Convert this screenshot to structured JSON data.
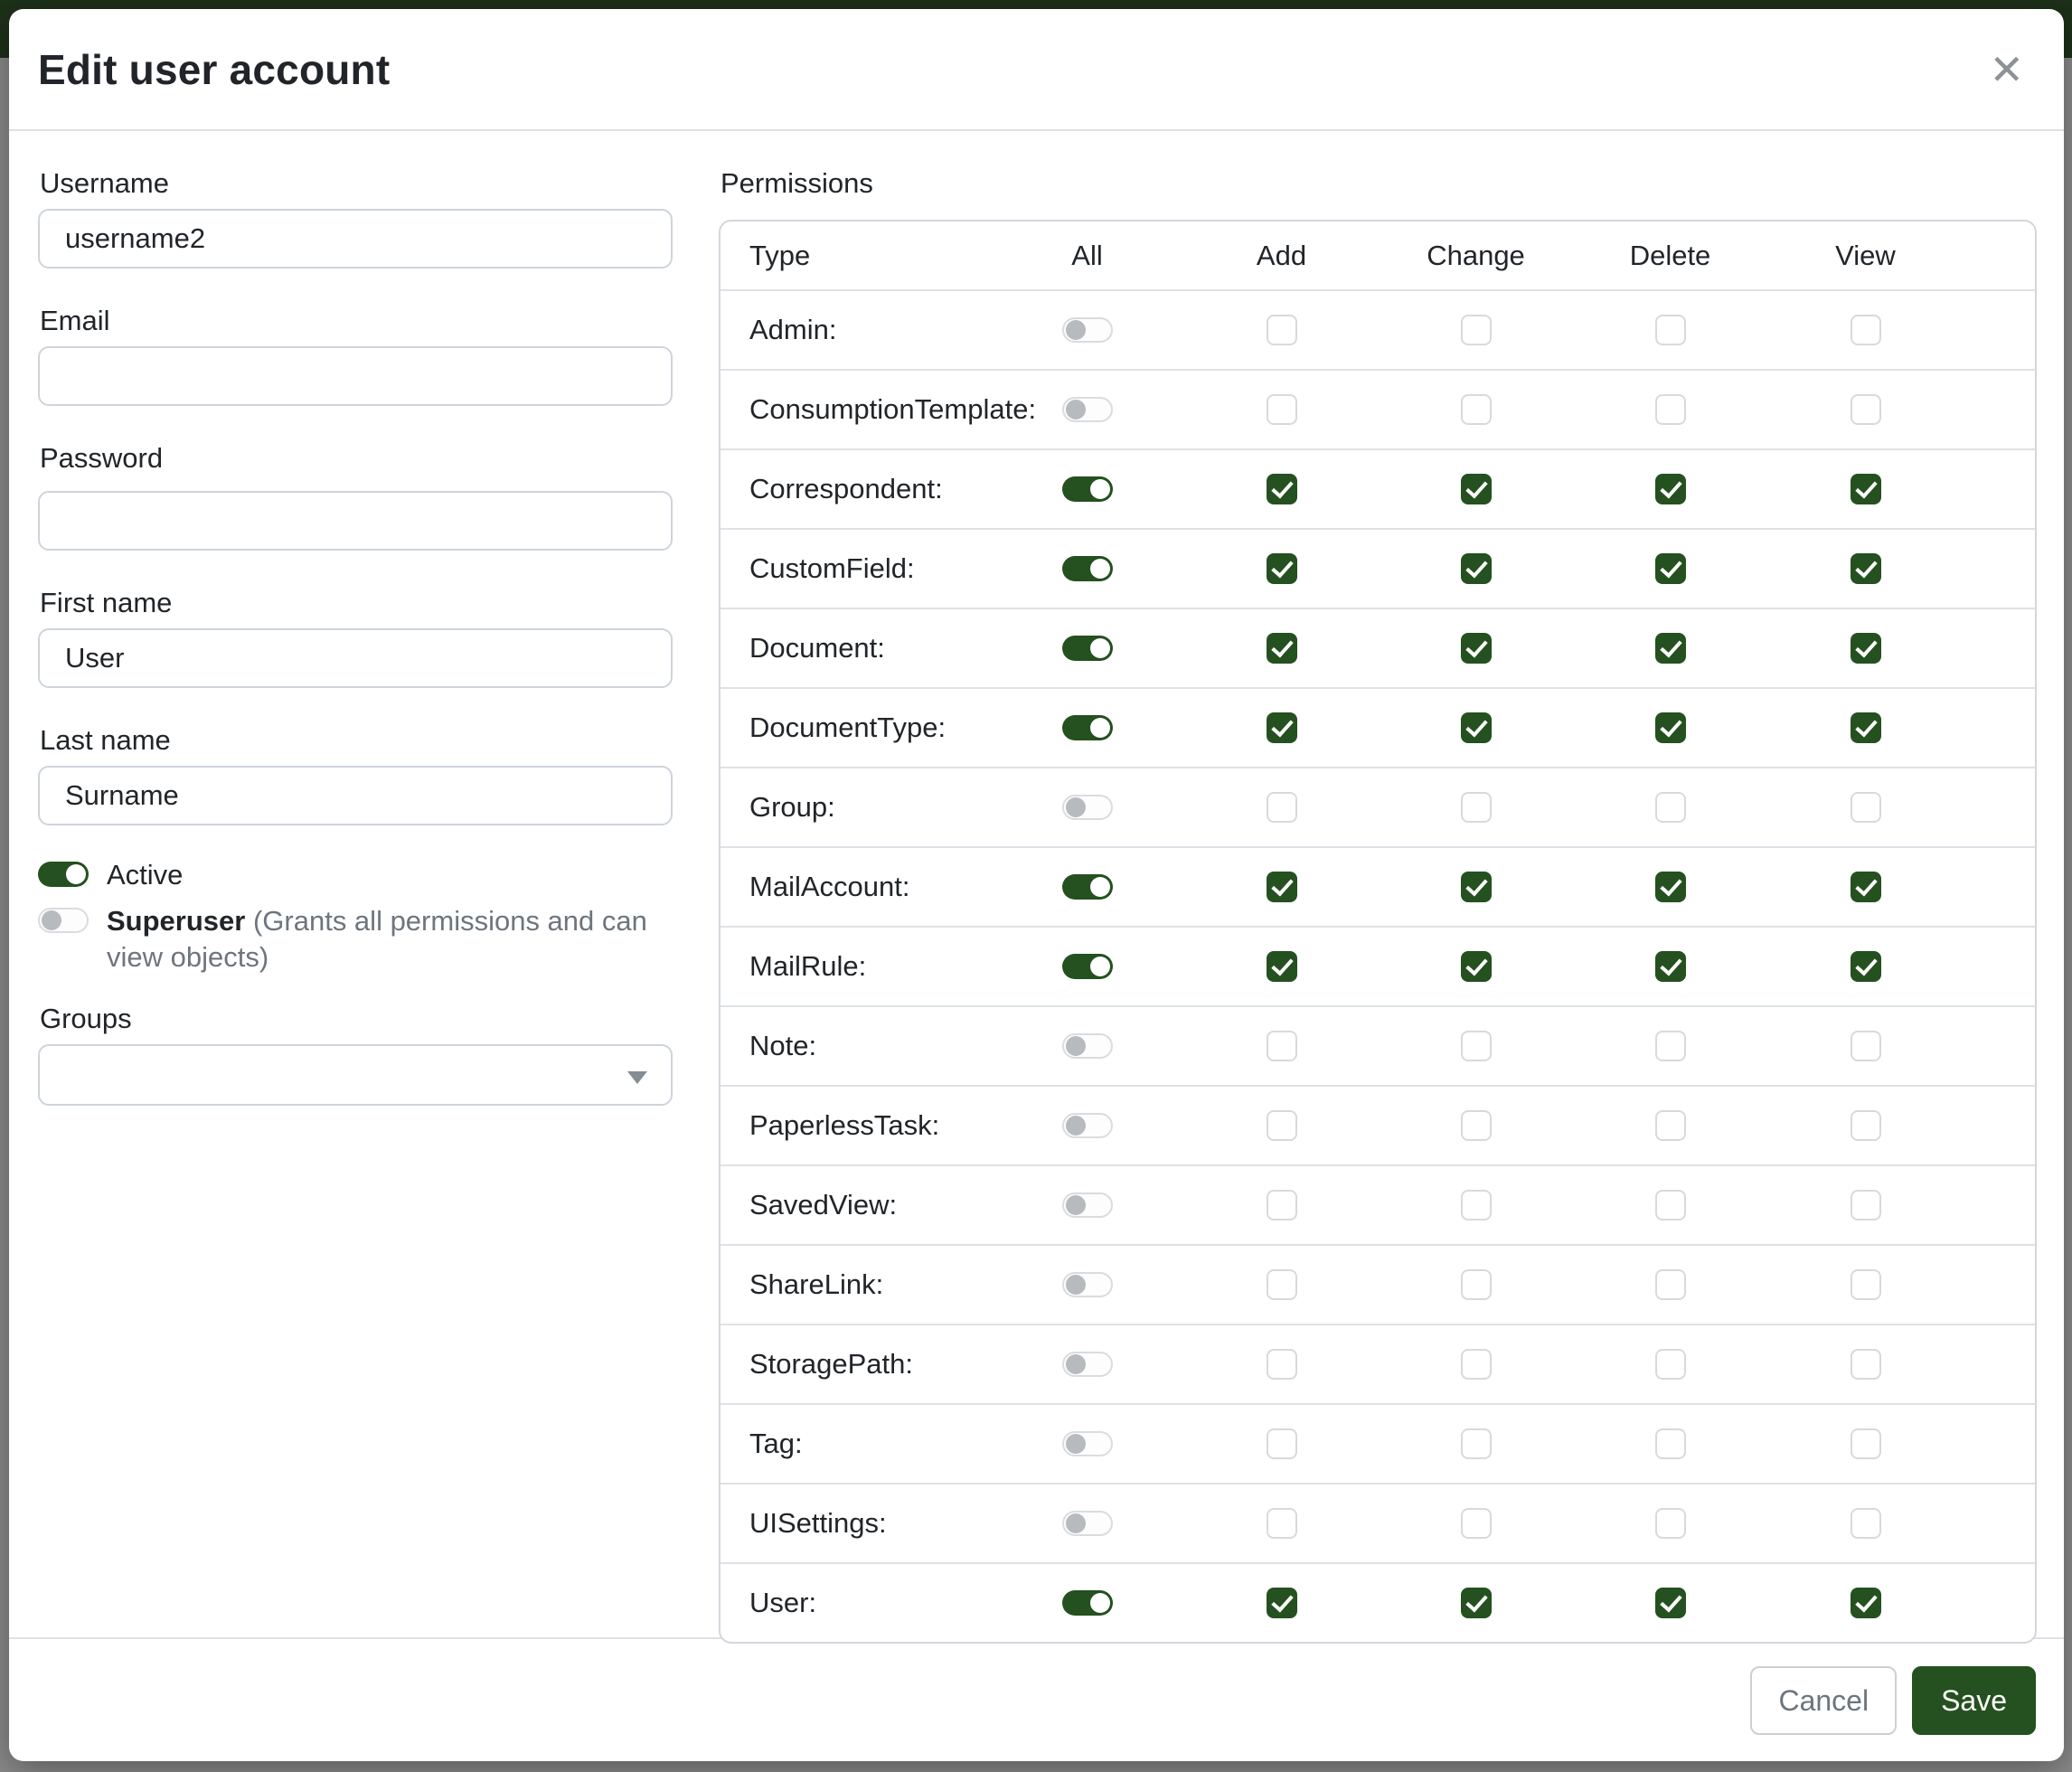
{
  "modal": {
    "title": "Edit user account",
    "close_icon": "✕"
  },
  "fields": {
    "username": {
      "label": "Username",
      "value": "username2"
    },
    "email": {
      "label": "Email",
      "value": ""
    },
    "password": {
      "label": "Password",
      "value": ""
    },
    "first_name": {
      "label": "First name",
      "value": "User"
    },
    "last_name": {
      "label": "Last name",
      "value": "Surname"
    },
    "active": {
      "label": "Active",
      "enabled": true
    },
    "superuser": {
      "label": "Superuser",
      "hint": "(Grants all permissions and can view objects)",
      "enabled": false
    },
    "groups": {
      "label": "Groups",
      "value": ""
    }
  },
  "permissions": {
    "label": "Permissions",
    "columns": [
      "Type",
      "All",
      "Add",
      "Change",
      "Delete",
      "View"
    ],
    "rows": [
      {
        "type": "Admin:",
        "all": false,
        "add": false,
        "change": false,
        "delete": false,
        "view": false
      },
      {
        "type": "ConsumptionTemplate:",
        "all": false,
        "add": false,
        "change": false,
        "delete": false,
        "view": false
      },
      {
        "type": "Correspondent:",
        "all": true,
        "add": true,
        "change": true,
        "delete": true,
        "view": true
      },
      {
        "type": "CustomField:",
        "all": true,
        "add": true,
        "change": true,
        "delete": true,
        "view": true
      },
      {
        "type": "Document:",
        "all": true,
        "add": true,
        "change": true,
        "delete": true,
        "view": true
      },
      {
        "type": "DocumentType:",
        "all": true,
        "add": true,
        "change": true,
        "delete": true,
        "view": true
      },
      {
        "type": "Group:",
        "all": false,
        "add": false,
        "change": false,
        "delete": false,
        "view": false
      },
      {
        "type": "MailAccount:",
        "all": true,
        "add": true,
        "change": true,
        "delete": true,
        "view": true
      },
      {
        "type": "MailRule:",
        "all": true,
        "add": true,
        "change": true,
        "delete": true,
        "view": true
      },
      {
        "type": "Note:",
        "all": false,
        "add": false,
        "change": false,
        "delete": false,
        "view": false
      },
      {
        "type": "PaperlessTask:",
        "all": false,
        "add": false,
        "change": false,
        "delete": false,
        "view": false
      },
      {
        "type": "SavedView:",
        "all": false,
        "add": false,
        "change": false,
        "delete": false,
        "view": false
      },
      {
        "type": "ShareLink:",
        "all": false,
        "add": false,
        "change": false,
        "delete": false,
        "view": false
      },
      {
        "type": "StoragePath:",
        "all": false,
        "add": false,
        "change": false,
        "delete": false,
        "view": false
      },
      {
        "type": "Tag:",
        "all": false,
        "add": false,
        "change": false,
        "delete": false,
        "view": false
      },
      {
        "type": "UISettings:",
        "all": false,
        "add": false,
        "change": false,
        "delete": false,
        "view": false
      },
      {
        "type": "User:",
        "all": true,
        "add": true,
        "change": true,
        "delete": true,
        "view": true
      }
    ]
  },
  "footer": {
    "cancel_label": "Cancel",
    "save_label": "Save"
  },
  "colors": {
    "primary_green": "#24511f",
    "backdrop_gray": "#8a8a8a",
    "backdrop_header_green": "#1d3019",
    "border_light": "#dee2e6"
  }
}
